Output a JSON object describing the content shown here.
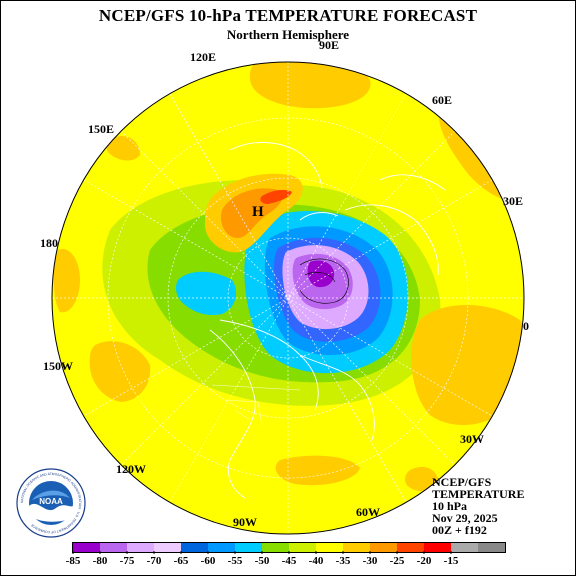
{
  "header": {
    "title": "NCEP/GFS 10-hPa TEMPERATURE FORECAST",
    "subtitle": "Northern Hemisphere"
  },
  "map": {
    "projection": "polar stereographic, north pole",
    "field": "10-hPa temperature",
    "fill_colors": {
      "bg": "#ffff00",
      "level_-35": "#ffcc00",
      "level_-30": "#ff9900",
      "level_-25": "#ff4400",
      "level_-50": "#ccf000",
      "level_-55": "#88dd00",
      "level_-60": "#00ccff",
      "level_-65": "#0099ff",
      "level_-70": "#3366ff",
      "level_-75": "#ddaaff",
      "level_-80": "#bb66ee",
      "level_-85": "#9900cc"
    },
    "marker": "H",
    "longitude_labels": {
      "lon_90e": "90E",
      "lon_60e": "60E",
      "lon_120e": "120E",
      "lon_150e": "150E",
      "lon_30e": "30E",
      "lon_180": "180",
      "lon_0": "0",
      "lon_150w": "150W",
      "lon_30w": "30W",
      "lon_120w": "120W",
      "lon_60w": "60W",
      "lon_90w": "90W"
    }
  },
  "info": {
    "line1": "NCEP/GFS",
    "line2": "TEMPERATURE",
    "line3": "10 hPa",
    "line4": "Nov 29, 2025",
    "line5": "00Z + f192"
  },
  "logo": {
    "text": "NOAA",
    "ring_text": "NATIONAL OCEANIC AND ATMOSPHERIC ADMINISTRATION · U.S. DEPARTMENT OF COMMERCE"
  },
  "legend": {
    "colors": [
      "#9900cc",
      "#bb66ee",
      "#ddaaff",
      "#eeccff",
      "#0066dd",
      "#0099ff",
      "#00ccff",
      "#88dd00",
      "#ccf000",
      "#ffff00",
      "#ffcc00",
      "#ff9900",
      "#ff4400",
      "#ff0000",
      "#aaaaaa",
      "#888888"
    ],
    "ticks": [
      "-85",
      "-80",
      "-75",
      "-70",
      "-65",
      "-60",
      "-55",
      "-50",
      "-45",
      "-40",
      "-35",
      "-30",
      "-25",
      "-20",
      "-15"
    ]
  }
}
